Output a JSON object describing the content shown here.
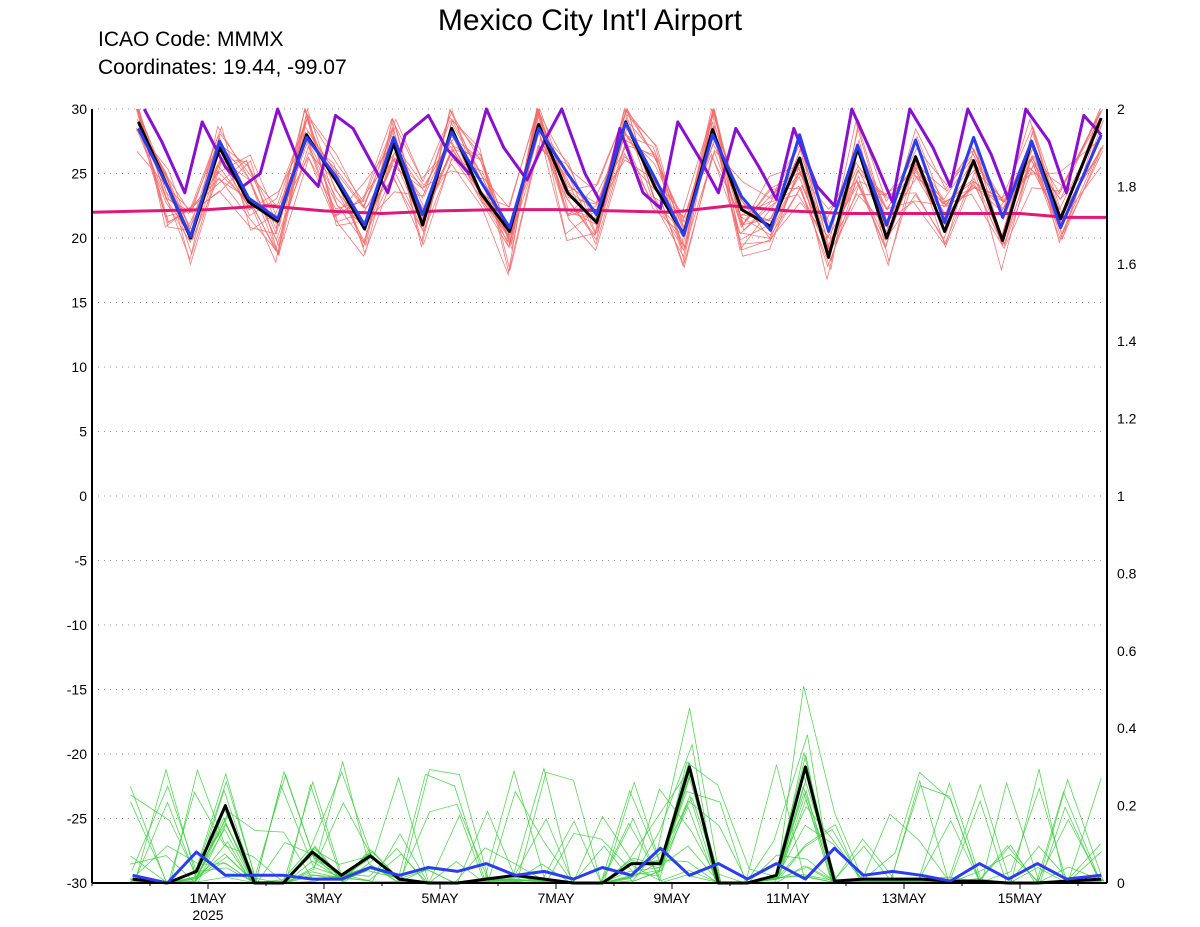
{
  "header": {
    "title": "Mexico City Int'l Airport",
    "icao": "ICAO Code: MMMX",
    "coords": "Coordinates: 19.44, -99.07"
  },
  "chart_data": {
    "type": "line",
    "title": "Mexico City Int'l Airport",
    "grid": true,
    "x_range_days": [
      -1.0,
      16.5
    ],
    "x_ticks": [
      {
        "day": 1,
        "label": "1MAY"
      },
      {
        "day": 3,
        "label": "3MAY"
      },
      {
        "day": 5,
        "label": "5MAY"
      },
      {
        "day": 7,
        "label": "7MAY"
      },
      {
        "day": 9,
        "label": "9MAY"
      },
      {
        "day": 11,
        "label": "11MAY"
      },
      {
        "day": 13,
        "label": "13MAY"
      },
      {
        "day": 15,
        "label": "15MAY"
      }
    ],
    "x_sublabel": {
      "day": 1,
      "label": "2025"
    },
    "left_axis": {
      "ylim": [
        -30,
        30
      ],
      "ticks": [
        30,
        25,
        20,
        15,
        10,
        5,
        0,
        -5,
        -10,
        -15,
        -20,
        -25,
        -30
      ]
    },
    "right_axis": {
      "ylim": [
        0,
        2
      ],
      "ticks": [
        2,
        1.8,
        1.6,
        1.4,
        1.2,
        1,
        0.8,
        0.6,
        0.4,
        0.2,
        0
      ]
    },
    "colors": {
      "ensemble_temp": "#f26b6b",
      "ensemble_precip": "#3ccc3c",
      "control": "#000000",
      "mean": "#2a3ef0",
      "purple": "#8a10d0",
      "magenta": "#e0187a"
    },
    "series": [
      {
        "key": "control_temp",
        "axis": "left",
        "x": [
          -0.2,
          0.3,
          0.7,
          1.2,
          1.7,
          2.2,
          2.7,
          3.2,
          3.7,
          4.2,
          4.7,
          5.2,
          5.7,
          6.2,
          6.7,
          7.2,
          7.7,
          8.2,
          8.7,
          9.2,
          9.7,
          10.2,
          10.7,
          11.2,
          11.7,
          12.2,
          12.7,
          13.2,
          13.7,
          14.2,
          14.7,
          15.2,
          15.7,
          16.4
        ],
        "y": [
          29,
          24,
          20,
          27,
          22.8,
          21.3,
          28,
          24.5,
          20.7,
          27.3,
          21.0,
          28.5,
          23.5,
          20.5,
          28.8,
          23.5,
          21.2,
          29,
          24.0,
          20.3,
          28.4,
          22.2,
          20.9,
          26.2,
          18.5,
          27.0,
          20.0,
          26.3,
          20.5,
          26.0,
          19.8,
          27.5,
          21.5,
          29.3
        ]
      },
      {
        "key": "mean_temp",
        "axis": "left",
        "x": [
          -0.2,
          0.3,
          0.7,
          1.2,
          1.7,
          2.2,
          2.7,
          3.2,
          3.7,
          4.2,
          4.7,
          5.2,
          5.7,
          6.2,
          6.7,
          7.2,
          7.7,
          8.2,
          8.7,
          9.2,
          9.7,
          10.2,
          10.7,
          11.2,
          11.7,
          12.2,
          12.7,
          13.2,
          13.7,
          14.2,
          14.7,
          15.2,
          15.7,
          16.4
        ],
        "y": [
          28.5,
          24,
          20.1,
          27.5,
          23.1,
          21.5,
          27.8,
          24.8,
          21.0,
          27.8,
          21.8,
          28.2,
          24.4,
          20.8,
          28.5,
          25.0,
          21.8,
          28.9,
          24.7,
          20.2,
          28.0,
          23.2,
          20.6,
          28.0,
          20.5,
          27.2,
          21.0,
          27.6,
          21.2,
          27.8,
          21.6,
          27.5,
          20.8,
          28.0
        ]
      },
      {
        "key": "purple",
        "axis": "left",
        "x": [
          -0.1,
          0.2,
          0.6,
          0.9,
          1.3,
          1.6,
          1.9,
          2.2,
          2.6,
          2.9,
          3.2,
          3.5,
          3.8,
          4.1,
          4.4,
          4.8,
          5.1,
          5.5,
          5.8,
          6.1,
          6.5,
          6.8,
          7.1,
          7.5,
          7.8,
          8.1,
          8.5,
          8.8,
          9.1,
          9.5,
          9.8,
          10.1,
          10.5,
          10.8,
          11.1,
          11.5,
          11.8,
          12.1,
          12.5,
          12.8,
          13.1,
          13.5,
          13.8,
          14.1,
          14.5,
          14.8,
          15.1,
          15.5,
          15.8,
          16.1,
          16.4
        ],
        "y": [
          30,
          27.5,
          23.5,
          29,
          25.5,
          24,
          25,
          30,
          25.5,
          24,
          29.5,
          28.5,
          26,
          23.5,
          28,
          29.5,
          27,
          25,
          30,
          27,
          24.5,
          27.5,
          30,
          25,
          22.5,
          28.5,
          23.5,
          22.3,
          29,
          26,
          23.5,
          28.5,
          25.5,
          23,
          28.5,
          24,
          22.5,
          30,
          26,
          22.8,
          30,
          27,
          24,
          30,
          26.5,
          23,
          30,
          27.5,
          23.5,
          29.5,
          28
        ]
      },
      {
        "key": "magenta",
        "axis": "left",
        "x": [
          -1.0,
          0,
          1,
          2,
          3,
          4,
          5,
          6,
          7,
          8,
          9,
          10,
          11,
          12,
          13,
          14,
          15,
          15.8,
          16.5
        ],
        "y": [
          22.0,
          22.1,
          22.2,
          22.5,
          22.1,
          21.9,
          22.1,
          22.2,
          22.2,
          22.1,
          22.0,
          22.5,
          22.1,
          21.9,
          21.9,
          21.9,
          21.9,
          21.6,
          21.6
        ]
      },
      {
        "key": "control_precip",
        "axis": "right",
        "x": [
          -0.3,
          0.3,
          0.8,
          1.3,
          1.8,
          2.3,
          2.8,
          3.3,
          3.8,
          4.3,
          4.8,
          5.3,
          5.8,
          6.3,
          6.8,
          7.3,
          7.8,
          8.3,
          8.8,
          9.3,
          9.8,
          10.3,
          10.8,
          11.3,
          11.8,
          12.3,
          12.8,
          13.3,
          13.8,
          14.3,
          14.8,
          15.3,
          15.8,
          16.4
        ],
        "y": [
          0.01,
          0,
          0.03,
          0.2,
          0,
          0,
          0.08,
          0.02,
          0.07,
          0.01,
          0,
          0,
          0.01,
          0.02,
          0.01,
          0,
          0,
          0.05,
          0.05,
          0.3,
          0,
          0,
          0.02,
          0.3,
          0.005,
          0.01,
          0.01,
          0.01,
          0.005,
          0.005,
          0,
          0,
          0.005,
          0.01
        ]
      },
      {
        "key": "mean_precip",
        "axis": "right",
        "x": [
          -0.3,
          0.3,
          0.8,
          1.3,
          1.8,
          2.3,
          2.8,
          3.3,
          3.8,
          4.3,
          4.8,
          5.3,
          5.8,
          6.3,
          6.8,
          7.3,
          7.8,
          8.3,
          8.8,
          9.3,
          9.8,
          10.3,
          10.8,
          11.3,
          11.8,
          12.3,
          12.8,
          13.3,
          13.8,
          14.3,
          14.8,
          15.3,
          15.8,
          16.4
        ],
        "y": [
          0.02,
          0,
          0.08,
          0.02,
          0.02,
          0.02,
          0.01,
          0.01,
          0.04,
          0.02,
          0.04,
          0.03,
          0.05,
          0.02,
          0.03,
          0.01,
          0.04,
          0.02,
          0.09,
          0.02,
          0.05,
          0.01,
          0.05,
          0.01,
          0.09,
          0.02,
          0.03,
          0.02,
          0.005,
          0.05,
          0.01,
          0.05,
          0.01,
          0.02
        ]
      }
    ]
  }
}
